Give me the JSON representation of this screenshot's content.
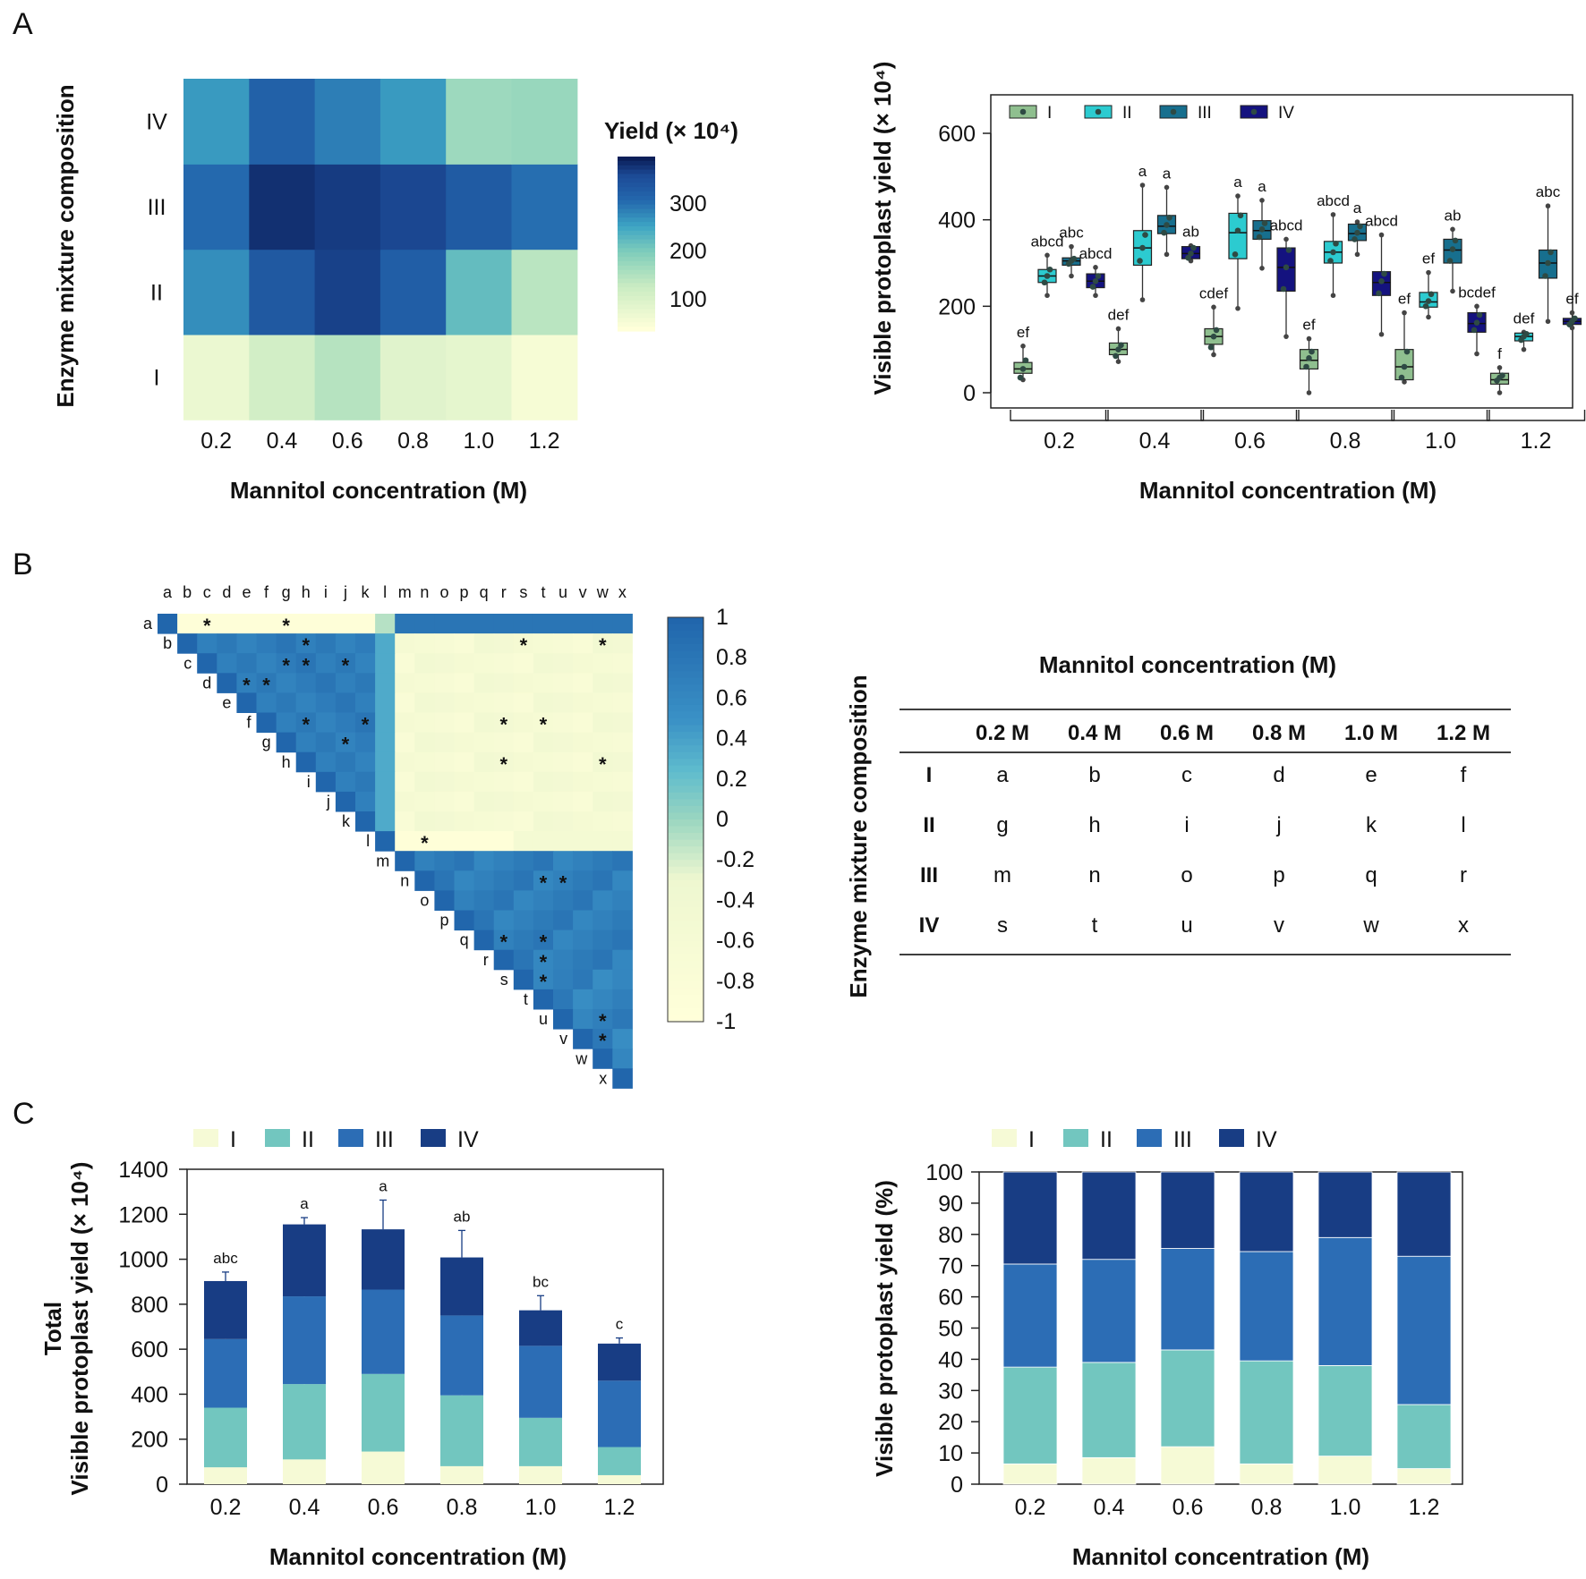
{
  "panels": {
    "a": "A",
    "b": "B",
    "c": "C"
  },
  "heatmap": {
    "ylabel": "Enzyme mixture composition",
    "xlabel": "Mannitol concentration (M)",
    "legend_title": "Yield (× 10⁴)",
    "legend_ticks": [
      "300",
      "200",
      "100"
    ],
    "rows": [
      "IV",
      "III",
      "II",
      "I"
    ],
    "cols": [
      "0.2",
      "0.4",
      "0.6",
      "0.8",
      "1.0",
      "1.2"
    ]
  },
  "boxplot_labels": {
    "ylabel": "Visible protoplast yield (× 10⁴)",
    "xlabel": "Mannitol concentration (M)",
    "legend": [
      "I",
      "II",
      "III",
      "IV"
    ],
    "yticks": [
      "600",
      "400",
      "200",
      "0"
    ],
    "xticks": [
      "0.2",
      "0.4",
      "0.6",
      "0.8",
      "1.0",
      "1.2"
    ]
  },
  "corr": {
    "letters": [
      "a",
      "b",
      "c",
      "d",
      "e",
      "f",
      "g",
      "h",
      "i",
      "j",
      "k",
      "l",
      "m",
      "n",
      "o",
      "p",
      "q",
      "r",
      "s",
      "t",
      "u",
      "v",
      "w",
      "x"
    ],
    "scale_ticks": [
      "1",
      "0.8",
      "0.6",
      "0.4",
      "0.2",
      "0",
      "-0.2",
      "-0.4",
      "-0.6",
      "-0.8",
      "-1"
    ],
    "star": "*"
  },
  "table": {
    "title": "Mannitol concentration (M)",
    "ylabel": "Enzyme mixture composition",
    "header": [
      "0.2 M",
      "0.4 M",
      "0.6 M",
      "0.8 M",
      "1.0 M",
      "1.2 M"
    ],
    "row_labels": [
      "I",
      "II",
      "III",
      "IV"
    ],
    "rows": [
      [
        "a",
        "b",
        "c",
        "d",
        "e",
        "f"
      ],
      [
        "g",
        "h",
        "i",
        "j",
        "k",
        "l"
      ],
      [
        "m",
        "n",
        "o",
        "p",
        "q",
        "r"
      ],
      [
        "s",
        "t",
        "u",
        "v",
        "w",
        "x"
      ]
    ]
  },
  "stack_labels": {
    "ylabel1": "Total",
    "ylabel2": "Visible protoplast yield (× 10⁴)",
    "xlabel": "Mannitol concentration (M)",
    "legend": [
      "I",
      "II",
      "III",
      "IV"
    ],
    "yticks": [
      "1400",
      "1200",
      "1000",
      "800",
      "600",
      "400",
      "200",
      "0"
    ],
    "xticks": [
      "0.2",
      "0.4",
      "0.6",
      "0.8",
      "1.0",
      "1.2"
    ]
  },
  "percent_labels": {
    "ylabel": "Visible protoplast yield (%)",
    "xlabel": "Mannitol concentration (M)",
    "legend": [
      "I",
      "II",
      "III",
      "IV"
    ],
    "yticks": [
      "100",
      "90",
      "80",
      "70",
      "60",
      "50",
      "40",
      "30",
      "20",
      "10",
      "0"
    ],
    "xticks": [
      "0.2",
      "0.4",
      "0.6",
      "0.8",
      "1.0",
      "1.2"
    ]
  },
  "colors": {
    "I": "#f6fad6",
    "II": "#72c6bf",
    "III": "#2c6db5",
    "IV": "#183d84",
    "box_I": "#8fbf8f",
    "box_II": "#2ccbd0",
    "box_III": "#176f8e",
    "box_IV": "#14127f"
  },
  "chart_data": [
    {
      "type": "heatmap",
      "title": "",
      "xlabel": "Mannitol concentration (M)",
      "ylabel": "Enzyme mixture composition",
      "x": [
        "0.2",
        "0.4",
        "0.6",
        "0.8",
        "1.0",
        "1.2"
      ],
      "y": [
        "I",
        "II",
        "III",
        "IV"
      ],
      "values": [
        [
          55,
          100,
          135,
          75,
          65,
          35
        ],
        [
          270,
          335,
          370,
          325,
          215,
          130
        ],
        [
          305,
          385,
          375,
          365,
          330,
          300
        ],
        [
          258,
          320,
          285,
          258,
          160,
          165
        ]
      ],
      "range": [
        20,
        400
      ],
      "legend_title": "Yield (× 10⁴)"
    },
    {
      "type": "box",
      "xlabel": "Mannitol concentration (M)",
      "ylabel": "Visible protoplast yield (× 10⁴)",
      "ylim": [
        -30,
        690
      ],
      "categories": [
        "0.2",
        "0.4",
        "0.6",
        "0.8",
        "1.0",
        "1.2"
      ],
      "series": [
        {
          "name": "I",
          "boxes": [
            {
              "min": 30,
              "q1": 45,
              "med": 55,
              "q3": 70,
              "max": 108,
              "pts": [
                35,
                55,
                75
              ],
              "label": "ef"
            },
            {
              "min": 72,
              "q1": 88,
              "med": 100,
              "q3": 115,
              "max": 148,
              "pts": [
                85,
                100,
                110
              ],
              "label": "def"
            },
            {
              "min": 88,
              "q1": 112,
              "med": 130,
              "q3": 148,
              "max": 198,
              "pts": [
                105,
                130,
                145
              ],
              "label": "cdef"
            },
            {
              "min": 0,
              "q1": 55,
              "med": 75,
              "q3": 100,
              "max": 125,
              "pts": [
                60,
                80,
                95
              ],
              "label": "ef"
            },
            {
              "min": 25,
              "q1": 30,
              "med": 60,
              "q3": 100,
              "max": 185,
              "pts": [
                35,
                60,
                95
              ],
              "label": "ef"
            },
            {
              "min": 0,
              "q1": 20,
              "med": 30,
              "q3": 45,
              "max": 58,
              "pts": [
                28,
                35,
                40
              ],
              "label": "f"
            }
          ]
        },
        {
          "name": "II",
          "boxes": [
            {
              "min": 225,
              "q1": 255,
              "med": 270,
              "q3": 285,
              "max": 318,
              "pts": [
                255,
                270,
                285
              ],
              "label": "abcd"
            },
            {
              "min": 215,
              "q1": 295,
              "med": 335,
              "q3": 375,
              "max": 480,
              "pts": [
                305,
                335,
                365
              ],
              "label": "a"
            },
            {
              "min": 195,
              "q1": 310,
              "med": 370,
              "q3": 415,
              "max": 455,
              "pts": [
                320,
                375,
                410
              ],
              "label": "a"
            },
            {
              "min": 225,
              "q1": 300,
              "med": 325,
              "q3": 350,
              "max": 412,
              "pts": [
                305,
                325,
                345
              ],
              "label": "abcd"
            },
            {
              "min": 175,
              "q1": 198,
              "med": 210,
              "q3": 232,
              "max": 278,
              "pts": [
                200,
                212,
                228
              ],
              "label": "ef"
            },
            {
              "min": 100,
              "q1": 120,
              "med": 130,
              "q3": 138,
              "max": 140,
              "pts": [
                122,
                130,
                136
              ],
              "label": "def"
            }
          ]
        },
        {
          "name": "III",
          "boxes": [
            {
              "min": 270,
              "q1": 295,
              "med": 305,
              "q3": 312,
              "max": 338,
              "pts": [
                298,
                305,
                310
              ],
              "label": "abc"
            },
            {
              "min": 320,
              "q1": 368,
              "med": 385,
              "q3": 410,
              "max": 475,
              "pts": [
                370,
                388,
                405
              ],
              "label": "a"
            },
            {
              "min": 288,
              "q1": 355,
              "med": 375,
              "q3": 398,
              "max": 445,
              "pts": [
                360,
                378,
                392
              ],
              "label": "a"
            },
            {
              "min": 320,
              "q1": 352,
              "med": 368,
              "q3": 390,
              "max": 395,
              "pts": [
                355,
                370,
                385
              ],
              "label": "a"
            },
            {
              "min": 235,
              "q1": 300,
              "med": 330,
              "q3": 355,
              "max": 378,
              "pts": [
                305,
                332,
                352
              ],
              "label": "ab"
            },
            {
              "min": 165,
              "q1": 265,
              "med": 300,
              "q3": 330,
              "max": 432,
              "pts": [
                270,
                300,
                325
              ],
              "label": "abc"
            }
          ]
        },
        {
          "name": "IV",
          "boxes": [
            {
              "min": 225,
              "q1": 243,
              "med": 258,
              "q3": 275,
              "max": 290,
              "pts": [
                245,
                258,
                270
              ],
              "label": "abcd"
            },
            {
              "min": 305,
              "q1": 310,
              "med": 322,
              "q3": 338,
              "max": 340,
              "pts": [
                312,
                322,
                335
              ],
              "label": "ab"
            },
            {
              "min": 130,
              "q1": 235,
              "med": 290,
              "q3": 335,
              "max": 355,
              "pts": [
                240,
                290,
                330
              ],
              "label": "abcd"
            },
            {
              "min": 135,
              "q1": 225,
              "med": 255,
              "q3": 280,
              "max": 365,
              "pts": [
                230,
                258,
                275
              ],
              "label": "abcd"
            },
            {
              "min": 90,
              "q1": 140,
              "med": 160,
              "q3": 185,
              "max": 200,
              "pts": [
                145,
                162,
                180
              ],
              "label": "bcdef"
            },
            {
              "min": 150,
              "q1": 158,
              "med": 165,
              "q3": 172,
              "max": 185,
              "pts": [
                158,
                165,
                172
              ],
              "label": "ef"
            }
          ]
        }
      ]
    },
    {
      "type": "heatmap",
      "subtype": "correlation-lower-triangle",
      "labels": [
        "a",
        "b",
        "c",
        "d",
        "e",
        "f",
        "g",
        "h",
        "i",
        "j",
        "k",
        "l",
        "m",
        "n",
        "o",
        "p",
        "q",
        "r",
        "s",
        "t",
        "u",
        "v",
        "w",
        "x"
      ],
      "range": [
        -1,
        1
      ],
      "groups": {
        "I": [
          "a",
          "b",
          "c",
          "d",
          "e",
          "f"
        ],
        "II": [
          "g",
          "h",
          "i",
          "j",
          "k",
          "l"
        ],
        "III": [
          "m",
          "n",
          "o",
          "p",
          "q",
          "r"
        ],
        "IV": [
          "s",
          "t",
          "u",
          "v",
          "w",
          "x"
        ]
      },
      "significant_pairs": [
        [
          "a",
          "c"
        ],
        [
          "a",
          "g"
        ],
        [
          "b",
          "s"
        ],
        [
          "b",
          "w"
        ],
        [
          "b",
          "h"
        ],
        [
          "c",
          "g"
        ],
        [
          "c",
          "j"
        ],
        [
          "c",
          "h"
        ],
        [
          "d",
          "e"
        ],
        [
          "d",
          "f"
        ],
        [
          "f",
          "h"
        ],
        [
          "f",
          "k"
        ],
        [
          "f",
          "r"
        ],
        [
          "f",
          "t"
        ],
        [
          "g",
          "j"
        ],
        [
          "h",
          "r"
        ],
        [
          "h",
          "w"
        ],
        [
          "l",
          "n"
        ],
        [
          "n",
          "t"
        ],
        [
          "n",
          "u"
        ],
        [
          "q",
          "r"
        ],
        [
          "q",
          "t"
        ],
        [
          "r",
          "t"
        ],
        [
          "s",
          "t"
        ],
        [
          "u",
          "w"
        ],
        [
          "v",
          "w"
        ]
      ]
    },
    {
      "type": "bar",
      "stacked": true,
      "xlabel": "Mannitol concentration (M)",
      "ylabel": "Total Visible protoplast yield (× 10⁴)",
      "ylim": [
        0,
        1400
      ],
      "categories": [
        "0.2",
        "0.4",
        "0.6",
        "0.8",
        "1.0",
        "1.2"
      ],
      "series": [
        {
          "name": "I",
          "values": [
            75,
            110,
            145,
            80,
            80,
            40
          ],
          "errors": [
            35,
            35,
            50,
            65,
            90,
            25
          ]
        },
        {
          "name": "II",
          "values": [
            265,
            335,
            345,
            315,
            215,
            125
          ],
          "errors": [
            50,
            135,
            135,
            95,
            55,
            25
          ]
        },
        {
          "name": "III",
          "values": [
            305,
            390,
            375,
            355,
            320,
            295
          ],
          "errors": [
            25,
            80,
            90,
            45,
            75,
            135
          ]
        },
        {
          "name": "IV",
          "values": [
            258,
            320,
            268,
            258,
            158,
            165
          ],
          "errors": [
            40,
            30,
            130,
            120,
            65,
            25
          ]
        }
      ],
      "letters": [
        "abc",
        "a",
        "a",
        "ab",
        "bc",
        "c"
      ]
    },
    {
      "type": "bar",
      "stacked": true,
      "percent": true,
      "xlabel": "Mannitol concentration (M)",
      "ylabel": "Visible protoplast yield (%)",
      "ylim": [
        0,
        100
      ],
      "categories": [
        "0.2",
        "0.4",
        "0.6",
        "0.8",
        "1.0",
        "1.2"
      ],
      "series": [
        {
          "name": "I",
          "values": [
            6.5,
            8.5,
            12,
            6.5,
            9,
            5
          ]
        },
        {
          "name": "II",
          "values": [
            31,
            30.5,
            31,
            33,
            29,
            20.5
          ]
        },
        {
          "name": "III",
          "values": [
            33,
            33,
            32.5,
            35,
            41,
            47.5
          ]
        },
        {
          "name": "IV",
          "values": [
            29.5,
            28,
            24.5,
            25.5,
            21,
            27
          ]
        }
      ]
    }
  ]
}
